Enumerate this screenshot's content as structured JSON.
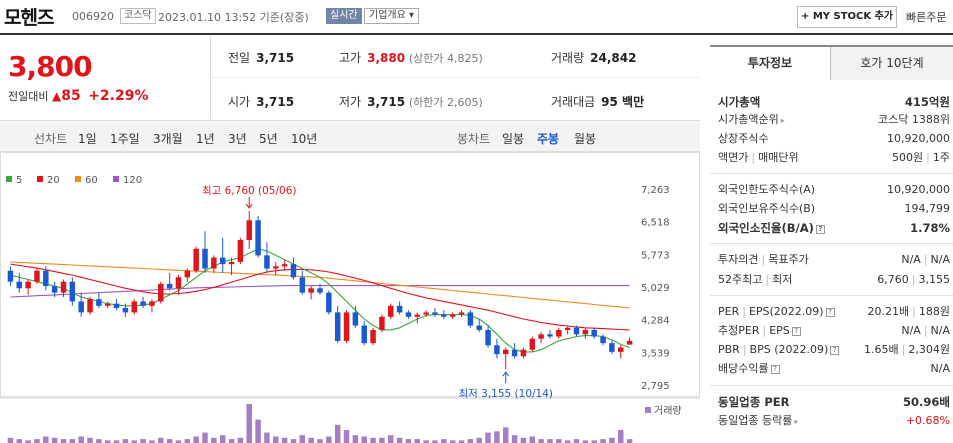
{
  "header": {
    "stock_name": "모헨즈",
    "stock_code": "006920",
    "market": "코스닥",
    "datetime": "2023.01.10 13:52 기준(장중)",
    "realtime": "실시간",
    "company_info": "기업개요 ▾",
    "my_stock_button": "+ MY STOCK 추가",
    "quick_order": "빠른주문"
  },
  "price": {
    "current": "3,800",
    "diff_label": "전일대비",
    "diff_arrow": "▲",
    "diff_value": "85",
    "diff_rate": "+2.29%"
  },
  "stats": {
    "prev_close_label": "전일",
    "prev_close": "3,715",
    "high_label": "고가",
    "high": "3,880",
    "upper_limit": "(상한가 4,825)",
    "volume_label": "거래량",
    "volume": "24,842",
    "open_label": "시가",
    "open": "3,715",
    "low_label": "저가",
    "low": "3,715",
    "lower_limit": "(하한가 2,605)",
    "amount_label": "거래대금",
    "amount": "95 백만"
  },
  "toolbar": {
    "line_chart_label": "선차트",
    "periods": [
      "1일",
      "1주일",
      "3개월",
      "1년",
      "3년",
      "5년",
      "10년"
    ],
    "candle_chart_label": "봉차트",
    "candle_periods": [
      "일봉",
      "주봉",
      "월봉"
    ],
    "active_candle": "주봉"
  },
  "chart_data": {
    "type": "candlestick",
    "moving_average_legend": [
      {
        "name": "5",
        "color": "#3aa83a"
      },
      {
        "name": "20",
        "color": "#e0141c"
      },
      {
        "name": "60",
        "color": "#f08a20"
      },
      {
        "name": "120",
        "color": "#9b59c6"
      }
    ],
    "y_ticks": [
      "7,263",
      "6,518",
      "5,773",
      "5,029",
      "4,284",
      "3,539",
      "2,795"
    ],
    "ylim": [
      2795,
      7263
    ],
    "high_annotation": "최고 6,760 (05/06)",
    "low_annotation": "최저 3,155 (10/14)",
    "volume_label": "거래량",
    "candles": [
      [
        5400,
        5500,
        5050,
        5150
      ],
      [
        5150,
        5350,
        4900,
        5000
      ],
      [
        5000,
        5200,
        4850,
        5150
      ],
      [
        5150,
        5450,
        5100,
        5400
      ],
      [
        5400,
        5500,
        4950,
        5050
      ],
      [
        5050,
        5150,
        4800,
        4900
      ],
      [
        4900,
        5200,
        4800,
        5150
      ],
      [
        5150,
        5250,
        4600,
        4700
      ],
      [
        4700,
        4900,
        4350,
        4450
      ],
      [
        4450,
        4800,
        4400,
        4750
      ],
      [
        4750,
        4900,
        4550,
        4600
      ],
      [
        4600,
        4700,
        4550,
        4650
      ],
      [
        4650,
        4750,
        4500,
        4550
      ],
      [
        4550,
        4650,
        4350,
        4450
      ],
      [
        4450,
        4750,
        4400,
        4700
      ],
      [
        4700,
        4800,
        4550,
        4600
      ],
      [
        4600,
        4750,
        4450,
        4700
      ],
      [
        4700,
        5150,
        4650,
        5100
      ],
      [
        5100,
        5350,
        4950,
        5000
      ],
      [
        5000,
        5300,
        4850,
        5250
      ],
      [
        5250,
        5450,
        5150,
        5400
      ],
      [
        5400,
        5950,
        5350,
        5900
      ],
      [
        5900,
        6300,
        5350,
        5450
      ],
      [
        5450,
        5750,
        5350,
        5700
      ],
      [
        5700,
        6150,
        5350,
        5550
      ],
      [
        5550,
        5700,
        5300,
        5600
      ],
      [
        5600,
        6150,
        5550,
        6100
      ],
      [
        6100,
        6760,
        5900,
        6550
      ],
      [
        6550,
        6650,
        5700,
        5750
      ],
      [
        5750,
        6050,
        5350,
        5450
      ],
      [
        5450,
        5600,
        5300,
        5500
      ],
      [
        5500,
        5650,
        5400,
        5550
      ],
      [
        5550,
        5700,
        5200,
        5250
      ],
      [
        5250,
        5400,
        4850,
        4900
      ],
      [
        4900,
        5050,
        4750,
        5000
      ],
      [
        5000,
        5100,
        4850,
        4900
      ],
      [
        4900,
        4950,
        4400,
        4450
      ],
      [
        4450,
        4600,
        3750,
        3800
      ],
      [
        3800,
        4500,
        3750,
        4450
      ],
      [
        4450,
        4600,
        4100,
        4150
      ],
      [
        4150,
        4250,
        3700,
        3750
      ],
      [
        3750,
        4100,
        3700,
        4050
      ],
      [
        4050,
        4400,
        4000,
        4350
      ],
      [
        4350,
        4650,
        4300,
        4600
      ],
      [
        4600,
        4700,
        4400,
        4450
      ],
      [
        4450,
        4500,
        4300,
        4350
      ],
      [
        4350,
        4450,
        4200,
        4400
      ],
      [
        4400,
        4500,
        4350,
        4450
      ],
      [
        4450,
        4550,
        4350,
        4400
      ],
      [
        4400,
        4500,
        4300,
        4350
      ],
      [
        4350,
        4450,
        4300,
        4400
      ],
      [
        4400,
        4500,
        4350,
        4450
      ],
      [
        4450,
        4500,
        4100,
        4150
      ],
      [
        4150,
        4300,
        4000,
        4050
      ],
      [
        4050,
        4150,
        3650,
        3700
      ],
      [
        3700,
        3850,
        3400,
        3500
      ],
      [
        3500,
        3650,
        3155,
        3600
      ],
      [
        3600,
        3750,
        3400,
        3450
      ],
      [
        3450,
        3650,
        3400,
        3600
      ],
      [
        3600,
        3900,
        3550,
        3850
      ],
      [
        3850,
        4000,
        3750,
        3950
      ],
      [
        3950,
        4050,
        3850,
        3900
      ],
      [
        3900,
        4100,
        3850,
        4050
      ],
      [
        4050,
        4150,
        3950,
        4100
      ],
      [
        4100,
        4150,
        3900,
        3950
      ],
      [
        3950,
        4100,
        3850,
        4050
      ],
      [
        4050,
        4100,
        3850,
        3900
      ],
      [
        3900,
        3950,
        3700,
        3750
      ],
      [
        3750,
        3800,
        3500,
        3550
      ],
      [
        3550,
        3700,
        3400,
        3650
      ],
      [
        3715,
        3880,
        3715,
        3800
      ]
    ],
    "ma5": [
      5300,
      5250,
      5200,
      5150,
      5100,
      5050,
      5000,
      4900,
      4800,
      4750,
      4700,
      4650,
      4620,
      4600,
      4600,
      4620,
      4650,
      4750,
      4850,
      4950,
      5100,
      5250,
      5400,
      5500,
      5600,
      5650,
      5700,
      5800,
      5900,
      5850,
      5750,
      5650,
      5550,
      5450,
      5350,
      5250,
      5100,
      4900,
      4700,
      4500,
      4300,
      4150,
      4050,
      4050,
      4100,
      4200,
      4300,
      4380,
      4400,
      4400,
      4400,
      4400,
      4380,
      4300,
      4150,
      3950,
      3750,
      3600,
      3550,
      3550,
      3600,
      3700,
      3800,
      3850,
      3900,
      3920,
      3920,
      3900,
      3820,
      3720,
      3650
    ],
    "ma20": [
      5550,
      5520,
      5490,
      5460,
      5420,
      5380,
      5340,
      5300,
      5250,
      5200,
      5150,
      5100,
      5050,
      5000,
      4960,
      4920,
      4890,
      4870,
      4870,
      4880,
      4900,
      4930,
      4970,
      5020,
      5080,
      5140,
      5200,
      5260,
      5320,
      5370,
      5400,
      5420,
      5430,
      5430,
      5420,
      5400,
      5370,
      5330,
      5280,
      5230,
      5180,
      5120,
      5060,
      5000,
      4940,
      4880,
      4830,
      4780,
      4740,
      4700,
      4660,
      4620,
      4580,
      4540,
      4500,
      4450,
      4400,
      4350,
      4300,
      4260,
      4220,
      4190,
      4160,
      4140,
      4120,
      4100,
      4090,
      4080,
      4070,
      4060,
      4050
    ],
    "ma60": [
      5600,
      5590,
      5580,
      5570,
      5560,
      5550,
      5540,
      5530,
      5520,
      5510,
      5500,
      5490,
      5480,
      5470,
      5460,
      5450,
      5440,
      5430,
      5420,
      5410,
      5400,
      5390,
      5380,
      5370,
      5360,
      5350,
      5340,
      5330,
      5320,
      5310,
      5300,
      5290,
      5280,
      5270,
      5260,
      5250,
      5230,
      5210,
      5190,
      5170,
      5150,
      5130,
      5110,
      5090,
      5070,
      5050,
      5030,
      5010,
      4990,
      4970,
      4950,
      4930,
      4910,
      4890,
      4870,
      4850,
      4830,
      4810,
      4790,
      4770,
      4750,
      4730,
      4710,
      4690,
      4670,
      4650,
      4630,
      4610,
      4590,
      4570,
      4550
    ],
    "ma120": [
      4800,
      4810,
      4820,
      4830,
      4840,
      4850,
      4860,
      4870,
      4880,
      4890,
      4900,
      4910,
      4920,
      4930,
      4940,
      4950,
      4960,
      4970,
      4980,
      4990,
      5000,
      5010,
      5015,
      5020,
      5025,
      5030,
      5035,
      5040,
      5045,
      5050,
      5055,
      5060,
      5060,
      5060,
      5060,
      5060,
      5060,
      5060,
      5060,
      5060,
      5060,
      5060,
      5060,
      5060,
      5060,
      5060,
      5060,
      5060,
      5060,
      5060,
      5060,
      5060,
      5060,
      5060,
      5060,
      5060,
      5060,
      5060,
      5060,
      5060,
      5060,
      5060,
      5060,
      5060,
      5060,
      5060,
      5060,
      5060,
      5060,
      5060,
      5060
    ],
    "volume": [
      4,
      3,
      2,
      3,
      5,
      4,
      3,
      3,
      5,
      4,
      3,
      2,
      2,
      3,
      2,
      3,
      2,
      4,
      3,
      2,
      3,
      5,
      8,
      4,
      6,
      3,
      4,
      30,
      18,
      8,
      5,
      4,
      3,
      6,
      4,
      3,
      5,
      14,
      10,
      6,
      5,
      4,
      4,
      6,
      4,
      3,
      3,
      2,
      2,
      3,
      2,
      2,
      3,
      4,
      8,
      9,
      12,
      6,
      4,
      5,
      3,
      3,
      3,
      2,
      3,
      2,
      2,
      3,
      4,
      10,
      3
    ]
  },
  "invest_panel": {
    "tab_active": "투자정보",
    "tab_inactive": "호가 10단계",
    "market_cap_label": "시가총액",
    "market_cap": "415억원",
    "market_cap_rank_label": "시가총액순위",
    "market_cap_rank": "코스닥 1388위",
    "shares_label": "상장주식수",
    "shares": "10,920,000",
    "face_value_label": "액면가",
    "trade_unit_label": "매매단위",
    "face_value": "500원",
    "trade_unit": "1주",
    "foreign_limit_label": "외국인한도주식수(A)",
    "foreign_limit": "10,920,000",
    "foreign_hold_label": "외국인보유주식수(B)",
    "foreign_hold": "194,799",
    "foreign_rate_label": "외국인소진율(B/A)",
    "foreign_rate": "1.78%",
    "opinion_label": "투자의견",
    "target_label": "목표주가",
    "opinion": "N/A",
    "target": "N/A",
    "week52_high_label": "52주최고",
    "week52_low_label": "최저",
    "week52_high": "6,760",
    "week52_low": "3,155",
    "per_label": "PER",
    "eps_label": "EPS(2022.09)",
    "per": "20.21배",
    "eps": "188원",
    "est_per_label": "추정PER",
    "est_eps_label": "EPS",
    "est_per": "N/A",
    "est_eps": "N/A",
    "pbr_label": "PBR",
    "bps_label": "BPS (2022.09)",
    "pbr": "1.65배",
    "bps": "2,304원",
    "dividend_label": "배당수익률",
    "dividend": "N/A",
    "industry_per_label": "동일업종 PER",
    "industry_per": "50.96배",
    "industry_rate_label": "동일업종 등락률",
    "industry_rate": "+0.68%"
  }
}
